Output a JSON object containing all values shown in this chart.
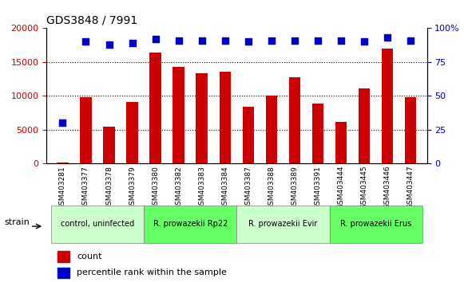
{
  "title": "GDS3848 / 7991",
  "samples": [
    "GSM403281",
    "GSM403377",
    "GSM403378",
    "GSM403379",
    "GSM403380",
    "GSM403382",
    "GSM403383",
    "GSM403384",
    "GSM403387",
    "GSM403388",
    "GSM403389",
    "GSM403391",
    "GSM403444",
    "GSM403445",
    "GSM403446",
    "GSM403447"
  ],
  "counts": [
    200,
    9800,
    5400,
    9100,
    16400,
    14300,
    13300,
    13600,
    8400,
    10100,
    12700,
    8900,
    6200,
    11100,
    17000,
    9800
  ],
  "percentiles": [
    30,
    90,
    88,
    89,
    92,
    91,
    91,
    91,
    90,
    91,
    91,
    91,
    91,
    90,
    93,
    91
  ],
  "groups": [
    {
      "label": "control, uninfected",
      "start": 0,
      "end": 4,
      "color": "#ccffcc"
    },
    {
      "label": "R. prowazekii Rp22",
      "start": 4,
      "end": 8,
      "color": "#66ff66"
    },
    {
      "label": "R. prowazekii Evir",
      "start": 8,
      "end": 12,
      "color": "#ccffcc"
    },
    {
      "label": "R. prowazekii Erus",
      "start": 12,
      "end": 16,
      "color": "#66ff66"
    }
  ],
  "bar_color": "#cc0000",
  "dot_color": "#0000cc",
  "ylabel_left": "",
  "ylabel_right": "",
  "ylim_left": [
    0,
    20000
  ],
  "ylim_right": [
    0,
    100
  ],
  "yticks_left": [
    0,
    5000,
    10000,
    15000,
    20000
  ],
  "yticks_right": [
    0,
    25,
    50,
    75,
    100
  ],
  "ytick_labels_left": [
    "0",
    "5000",
    "10000",
    "15000",
    "20000"
  ],
  "ytick_labels_right": [
    "0",
    "25",
    "50",
    "75",
    "100%"
  ],
  "legend_count": "count",
  "legend_percentile": "percentile rank within the sample",
  "strain_label": "strain",
  "bg_color": "#ffffff",
  "plot_bg": "#ffffff",
  "tick_color_left": "#cc0000",
  "tick_color_right": "#0000cc",
  "grid_color": "#000000"
}
